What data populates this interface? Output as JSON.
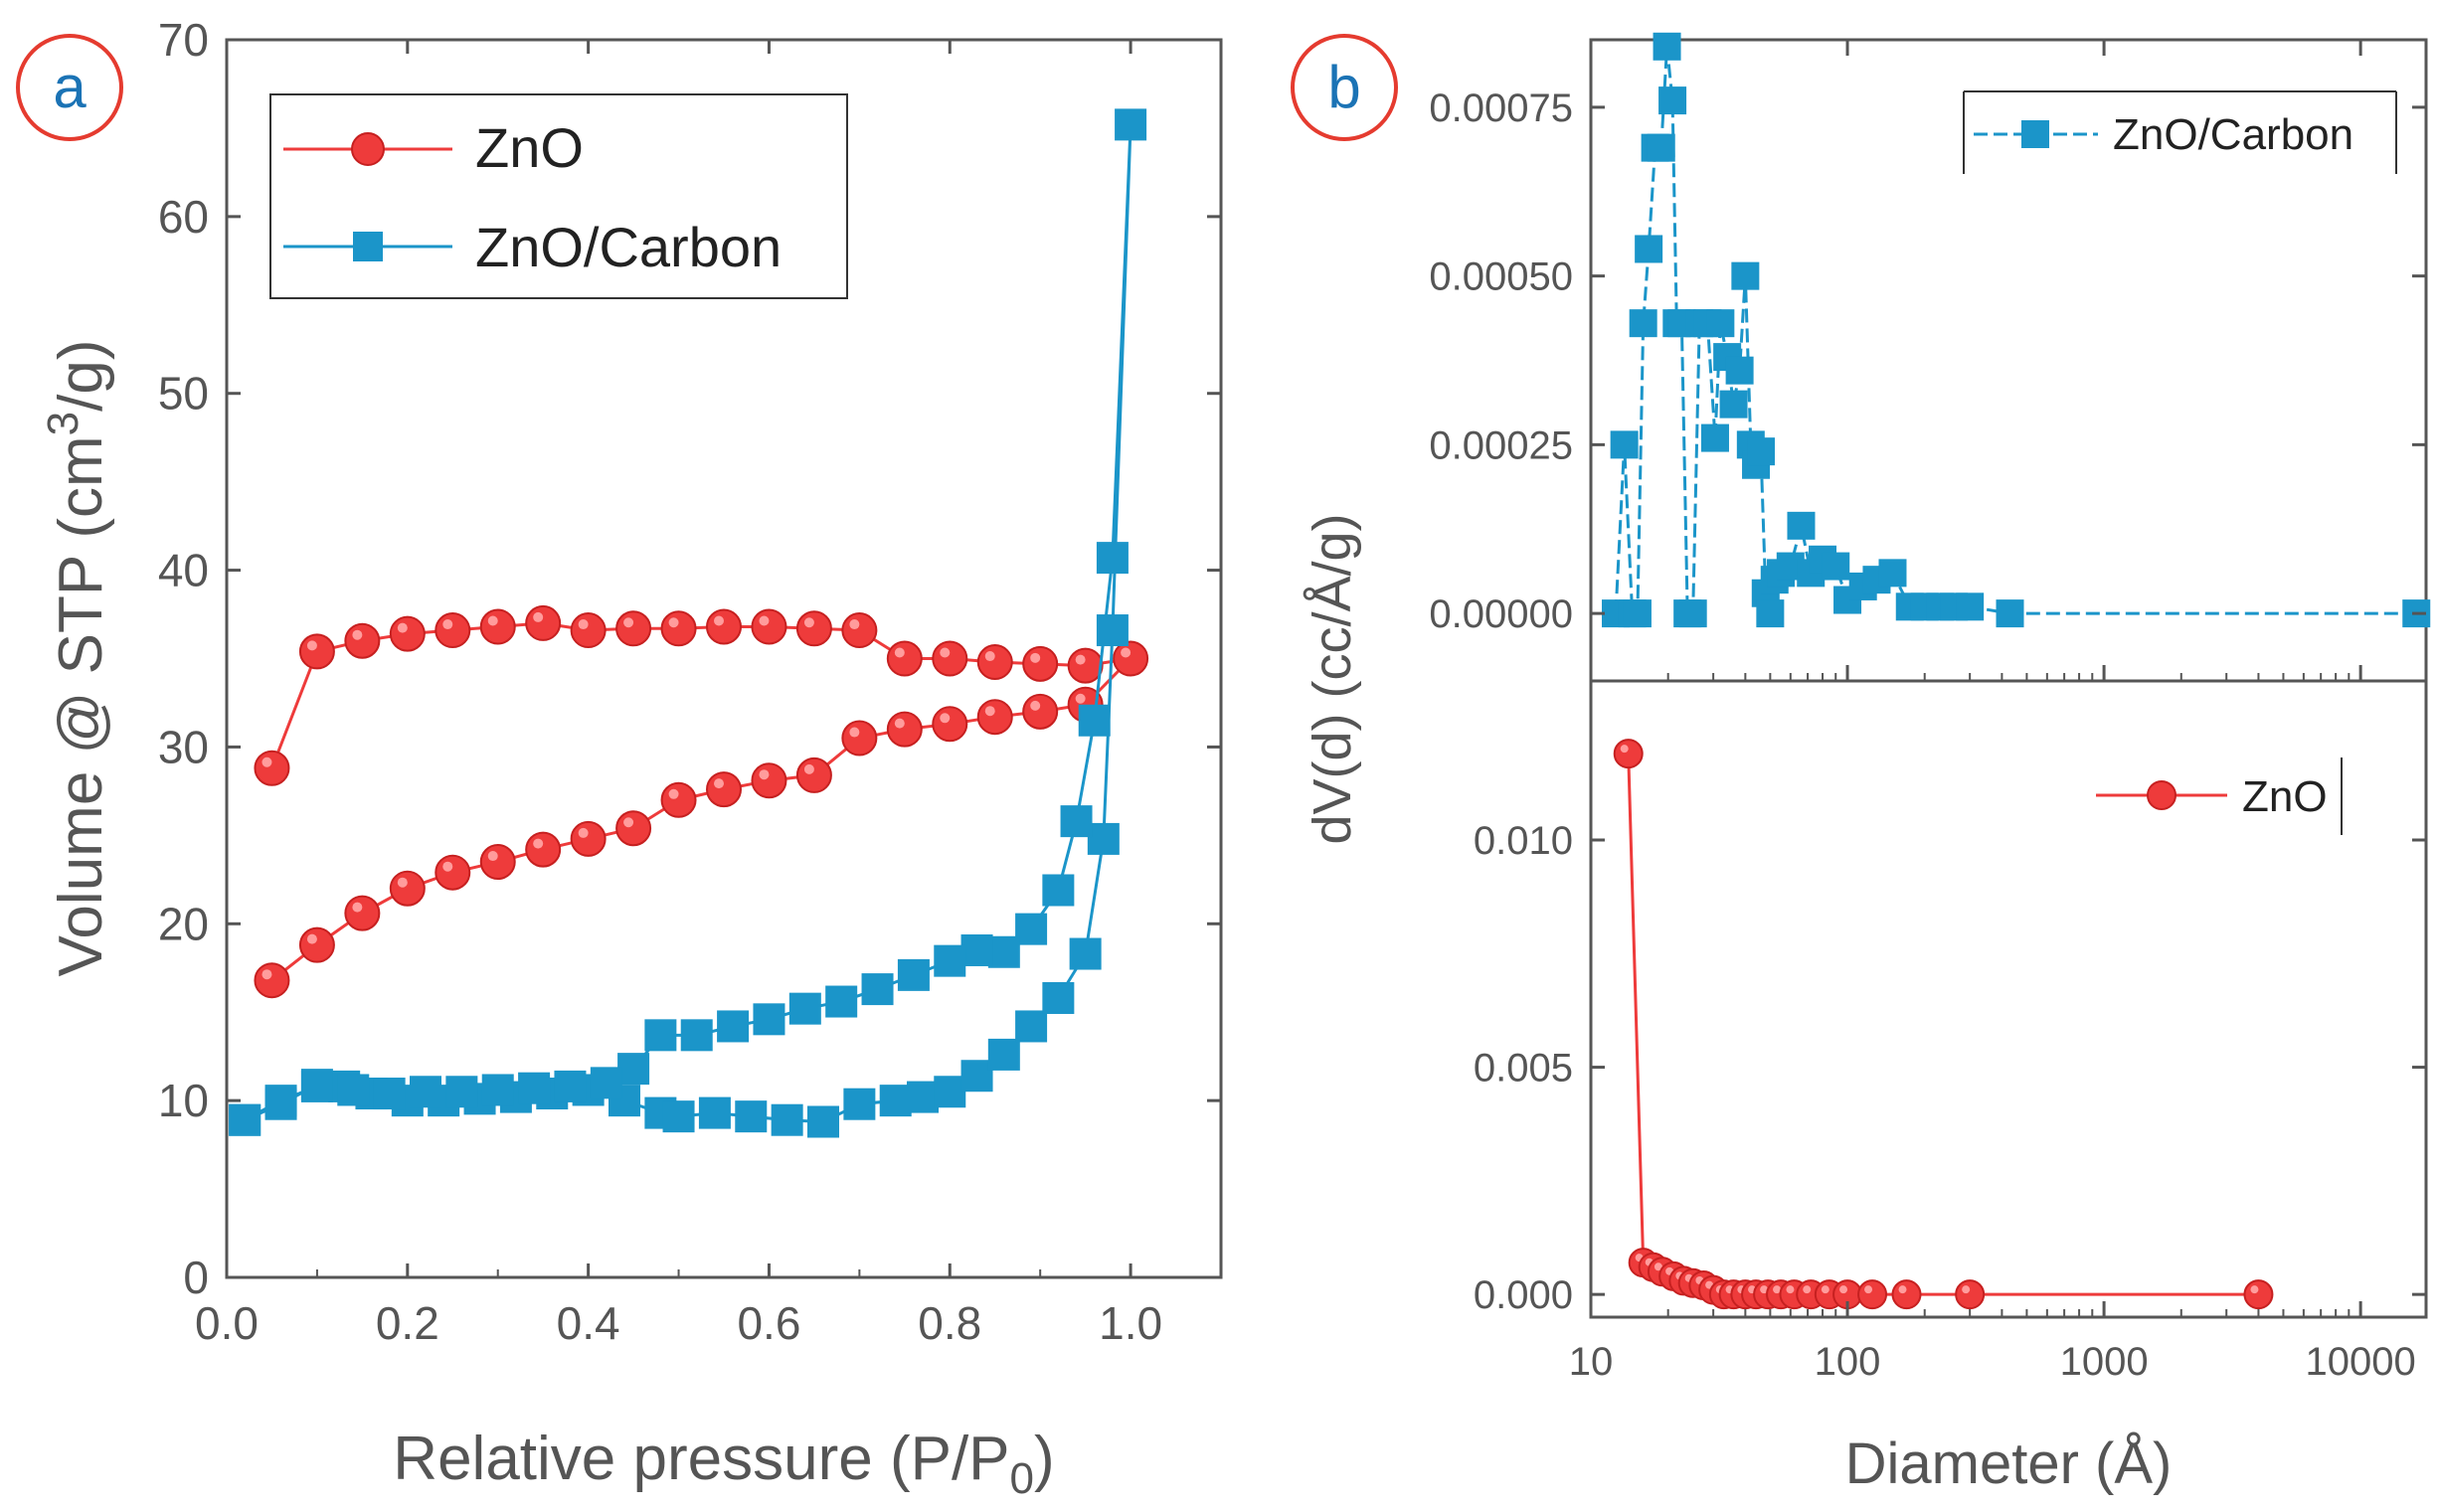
{
  "colors": {
    "zno": "#ee3b3b",
    "znoc": "#1b95c9",
    "badge_ring": "#e53b2f",
    "badge_text": "#1b73b5",
    "axis": "#555555"
  },
  "panels": [
    {
      "id": "a",
      "label": "a"
    },
    {
      "id": "b",
      "label": "b"
    }
  ],
  "chart_data": [
    {
      "panel": "a",
      "type": "line",
      "xlabel": "Relative pressure (P/P",
      "xlabel_sub": "0",
      "xlabel_end": ")",
      "ylabel": "Volume @ STP (cm",
      "ylabel_sup": "3",
      "ylabel_end": "/g)",
      "xlim": [
        0.0,
        1.1
      ],
      "ylim": [
        0,
        70
      ],
      "xticks": [
        "0.0",
        "0.2",
        "0.4",
        "0.6",
        "0.8",
        "1.0"
      ],
      "yticks": [
        "0",
        "10",
        "20",
        "30",
        "40",
        "50",
        "60",
        "70"
      ],
      "legend": {
        "position": "top-left",
        "entries": [
          "ZnO",
          "ZnO/Carbon"
        ]
      },
      "series": [
        {
          "name": "ZnO",
          "marker": "circle",
          "x": [
            0.05,
            0.1,
            0.15,
            0.2,
            0.25,
            0.3,
            0.35,
            0.4,
            0.45,
            0.5,
            0.55,
            0.6,
            0.65,
            0.7,
            0.75,
            0.8,
            0.85,
            0.9,
            0.95,
            1.0,
            0.95,
            0.9,
            0.85,
            0.8,
            0.75,
            0.7,
            0.65,
            0.6,
            0.55,
            0.5,
            0.45,
            0.4,
            0.35,
            0.3,
            0.25,
            0.2,
            0.15,
            0.1,
            0.05
          ],
          "y": [
            16.8,
            18.8,
            20.6,
            22.0,
            22.9,
            23.5,
            24.2,
            24.8,
            25.4,
            27.0,
            27.6,
            28.1,
            28.4,
            30.5,
            31.0,
            31.3,
            31.7,
            32.0,
            32.4,
            35.0,
            34.6,
            34.7,
            34.8,
            35.0,
            35.0,
            36.6,
            36.7,
            36.8,
            36.8,
            36.7,
            36.7,
            36.6,
            37.0,
            36.8,
            36.6,
            36.4,
            36.0,
            35.4,
            28.8
          ]
        },
        {
          "name": "ZnO/Carbon",
          "marker": "square",
          "x": [
            0.02,
            0.06,
            0.1,
            0.13,
            0.16,
            0.2,
            0.24,
            0.28,
            0.32,
            0.36,
            0.4,
            0.44,
            0.48,
            0.5,
            0.54,
            0.58,
            0.62,
            0.66,
            0.7,
            0.74,
            0.77,
            0.8,
            0.83,
            0.86,
            0.89,
            0.92,
            0.95,
            0.97,
            0.98,
            1.0,
            0.98,
            0.96,
            0.94,
            0.92,
            0.89,
            0.86,
            0.83,
            0.8,
            0.76,
            0.72,
            0.68,
            0.64,
            0.6,
            0.56,
            0.52,
            0.48,
            0.45,
            0.42,
            0.38,
            0.34,
            0.3,
            0.26,
            0.22,
            0.18,
            0.14,
            0.1,
            0.06,
            0.02
          ],
          "y": [
            8.9,
            9.8,
            10.9,
            10.8,
            10.4,
            10.0,
            10.0,
            10.1,
            10.2,
            10.4,
            10.6,
            10.0,
            9.3,
            9.1,
            9.3,
            9.1,
            8.9,
            8.8,
            9.8,
            10.0,
            10.2,
            10.5,
            11.4,
            12.6,
            14.2,
            15.8,
            18.3,
            24.8,
            36.6,
            65.2,
            40.7,
            31.5,
            25.8,
            21.9,
            19.7,
            18.4,
            18.5,
            17.9,
            17.1,
            16.3,
            15.6,
            15.2,
            14.6,
            14.2,
            13.7,
            13.7,
            11.8,
            11.0,
            10.8,
            10.7,
            10.6,
            10.5,
            10.5,
            10.4,
            10.6,
            10.8,
            10.0,
            8.9
          ]
        }
      ]
    },
    {
      "panel": "b-top",
      "type": "line",
      "xscale": "log",
      "xlim": [
        10,
        18000
      ],
      "ylim": [
        -0.0001,
        0.00085
      ],
      "yticks": [
        "0.00000",
        "0.00025",
        "0.00050",
        "0.00075"
      ],
      "legend": {
        "position": "top-right",
        "entries": [
          "ZnO/Carbon"
        ]
      },
      "series": [
        {
          "name": "ZnO/Carbon",
          "marker": "square",
          "x": [
            12.5,
            13.5,
            14.5,
            15.2,
            16.0,
            16.8,
            17.8,
            18.8,
            19.8,
            20.8,
            21.6,
            22.6,
            23.8,
            25.0,
            26.5,
            28.5,
            30.5,
            32.0,
            34.0,
            36.0,
            38.0,
            40.0,
            42.0,
            44.0,
            46.0,
            48.0,
            50.0,
            52.0,
            55.0,
            60.0,
            66.0,
            72.0,
            80.0,
            90.0,
            100.0,
            115.0,
            130.0,
            150.0,
            175.0,
            200.0,
            230.0,
            260.0,
            300.0,
            430.0,
            16500.0
          ],
          "y": [
            0.0,
            0.00025,
            0.0,
            0.0,
            0.00043,
            0.00054,
            0.00069,
            0.00069,
            0.00084,
            0.00076,
            0.00043,
            0.00043,
            0.0,
            0.0,
            0.00043,
            0.00043,
            0.00026,
            0.00043,
            0.00038,
            0.00031,
            0.00036,
            0.0005,
            0.00025,
            0.00022,
            0.00024,
            3e-05,
            0.0,
            5e-05,
            6e-05,
            7e-05,
            0.00013,
            6e-05,
            8e-05,
            7e-05,
            2e-05,
            4e-05,
            5e-05,
            6e-05,
            1e-05,
            1e-05,
            1e-05,
            1e-05,
            1e-05,
            0.0,
            0.0
          ]
        }
      ]
    },
    {
      "panel": "b-bottom",
      "type": "line",
      "xscale": "log",
      "xlabel": "Diameter (Å)",
      "ylabel": "dV(d) (cc/Å/g)",
      "xlim": [
        10,
        18000
      ],
      "ylim": [
        -0.0005,
        0.0135
      ],
      "xticks": [
        "10",
        "100",
        "1000",
        "10000"
      ],
      "yticks": [
        "0.000",
        "0.005",
        "0.010"
      ],
      "legend": {
        "position": "top-right",
        "entries": [
          "ZnO"
        ]
      },
      "series": [
        {
          "name": "ZnO",
          "marker": "circle",
          "x": [
            14.0,
            16.0,
            17.5,
            19.0,
            21.0,
            23.0,
            25.0,
            27.5,
            30.0,
            33.0,
            36.0,
            40.0,
            44.0,
            49.0,
            55.0,
            62.0,
            72.0,
            85.0,
            100.0,
            125.0,
            170.0,
            300.0,
            4000.0
          ],
          "y": [
            0.0119,
            0.0007,
            0.0006,
            0.0005,
            0.0004,
            0.0003,
            0.00025,
            0.0002,
            0.0001,
            0.0,
            0.0,
            0.0,
            0.0,
            0.0,
            0.0,
            0.0,
            0.0,
            0.0,
            0.0,
            0.0,
            0.0,
            0.0,
            0.0
          ]
        }
      ]
    }
  ]
}
